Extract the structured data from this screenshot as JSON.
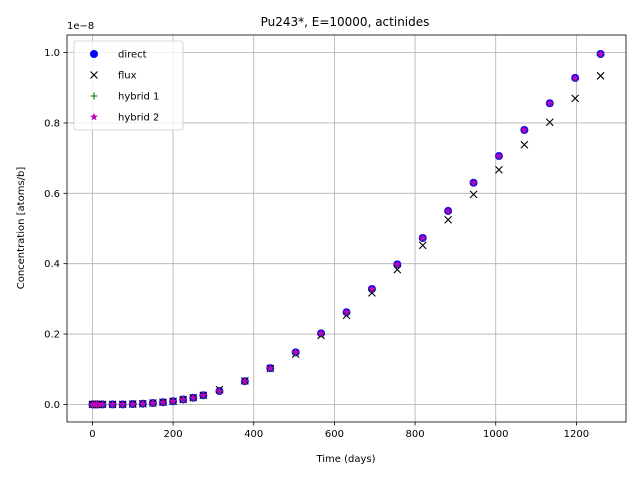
{
  "chart_data": {
    "type": "scatter",
    "title": "Pu243*, E=10000, actinides",
    "xlabel": "Time (days)",
    "ylabel": "Concentration [atoms/b]",
    "offset_text": "1e−8",
    "xlim": [
      -63,
      1323
    ],
    "ylim": [
      -0.05,
      1.05
    ],
    "y_scale_factor": 1e-08,
    "x_ticks": [
      0,
      200,
      400,
      600,
      800,
      1000,
      1200
    ],
    "x_tick_labels": [
      "0",
      "200",
      "400",
      "600",
      "800",
      "1000",
      "1200"
    ],
    "y_ticks": [
      0.0,
      0.2,
      0.4,
      0.6,
      0.8,
      1.0
    ],
    "y_tick_labels": [
      "0.0",
      "0.2",
      "0.4",
      "0.6",
      "0.8",
      "1.0"
    ],
    "grid": true,
    "legend_position": "upper left",
    "x": [
      0,
      5,
      10,
      15,
      25,
      50,
      75,
      100,
      125,
      150,
      175,
      200,
      225,
      250,
      275,
      315,
      378,
      441,
      504,
      567,
      630,
      693,
      756,
      819,
      882,
      945,
      1008,
      1071,
      1134,
      1197,
      1260
    ],
    "series": [
      {
        "name": "direct",
        "marker": "circle",
        "color": "#0000ff",
        "values": [
          0.0,
          0.0,
          0.0,
          0.0,
          0.0,
          0.0,
          0.0,
          0.001,
          0.002,
          0.004,
          0.006,
          0.009,
          0.014,
          0.019,
          0.026,
          0.038,
          0.066,
          0.103,
          0.148,
          0.202,
          0.262,
          0.328,
          0.398,
          0.473,
          0.55,
          0.63,
          0.706,
          0.78,
          0.856,
          0.928,
          0.996
        ]
      },
      {
        "name": "flux",
        "marker": "x",
        "color": "#000000",
        "values": [
          0.0,
          0.0,
          0.0,
          0.0,
          0.0,
          0.0,
          0.0,
          0.001,
          0.002,
          0.004,
          0.006,
          0.009,
          0.014,
          0.019,
          0.026,
          0.042,
          0.067,
          0.102,
          0.143,
          0.196,
          0.253,
          0.317,
          0.383,
          0.452,
          0.525,
          0.597,
          0.667,
          0.738,
          0.802,
          0.87,
          0.934
        ]
      },
      {
        "name": "hybrid 1",
        "marker": "plus",
        "color": "#008000",
        "values": [
          0.0,
          0.0,
          0.0,
          0.0,
          0.0,
          0.0,
          0.0,
          0.001,
          0.002,
          0.004,
          0.006,
          0.009,
          0.014,
          0.019,
          0.026,
          0.038,
          0.066,
          0.103,
          0.148,
          0.202,
          0.262,
          0.328,
          0.398,
          0.473,
          0.55,
          0.63,
          0.706,
          0.78,
          0.856,
          0.928,
          0.996
        ]
      },
      {
        "name": "hybrid 2",
        "marker": "star",
        "color": "#bf00bf",
        "values": [
          0.0,
          0.0,
          0.0,
          0.0,
          0.0,
          0.0,
          0.0,
          0.001,
          0.002,
          0.004,
          0.006,
          0.009,
          0.014,
          0.019,
          0.026,
          0.038,
          0.066,
          0.103,
          0.148,
          0.202,
          0.262,
          0.328,
          0.398,
          0.473,
          0.55,
          0.63,
          0.706,
          0.78,
          0.856,
          0.928,
          0.996
        ]
      }
    ]
  }
}
